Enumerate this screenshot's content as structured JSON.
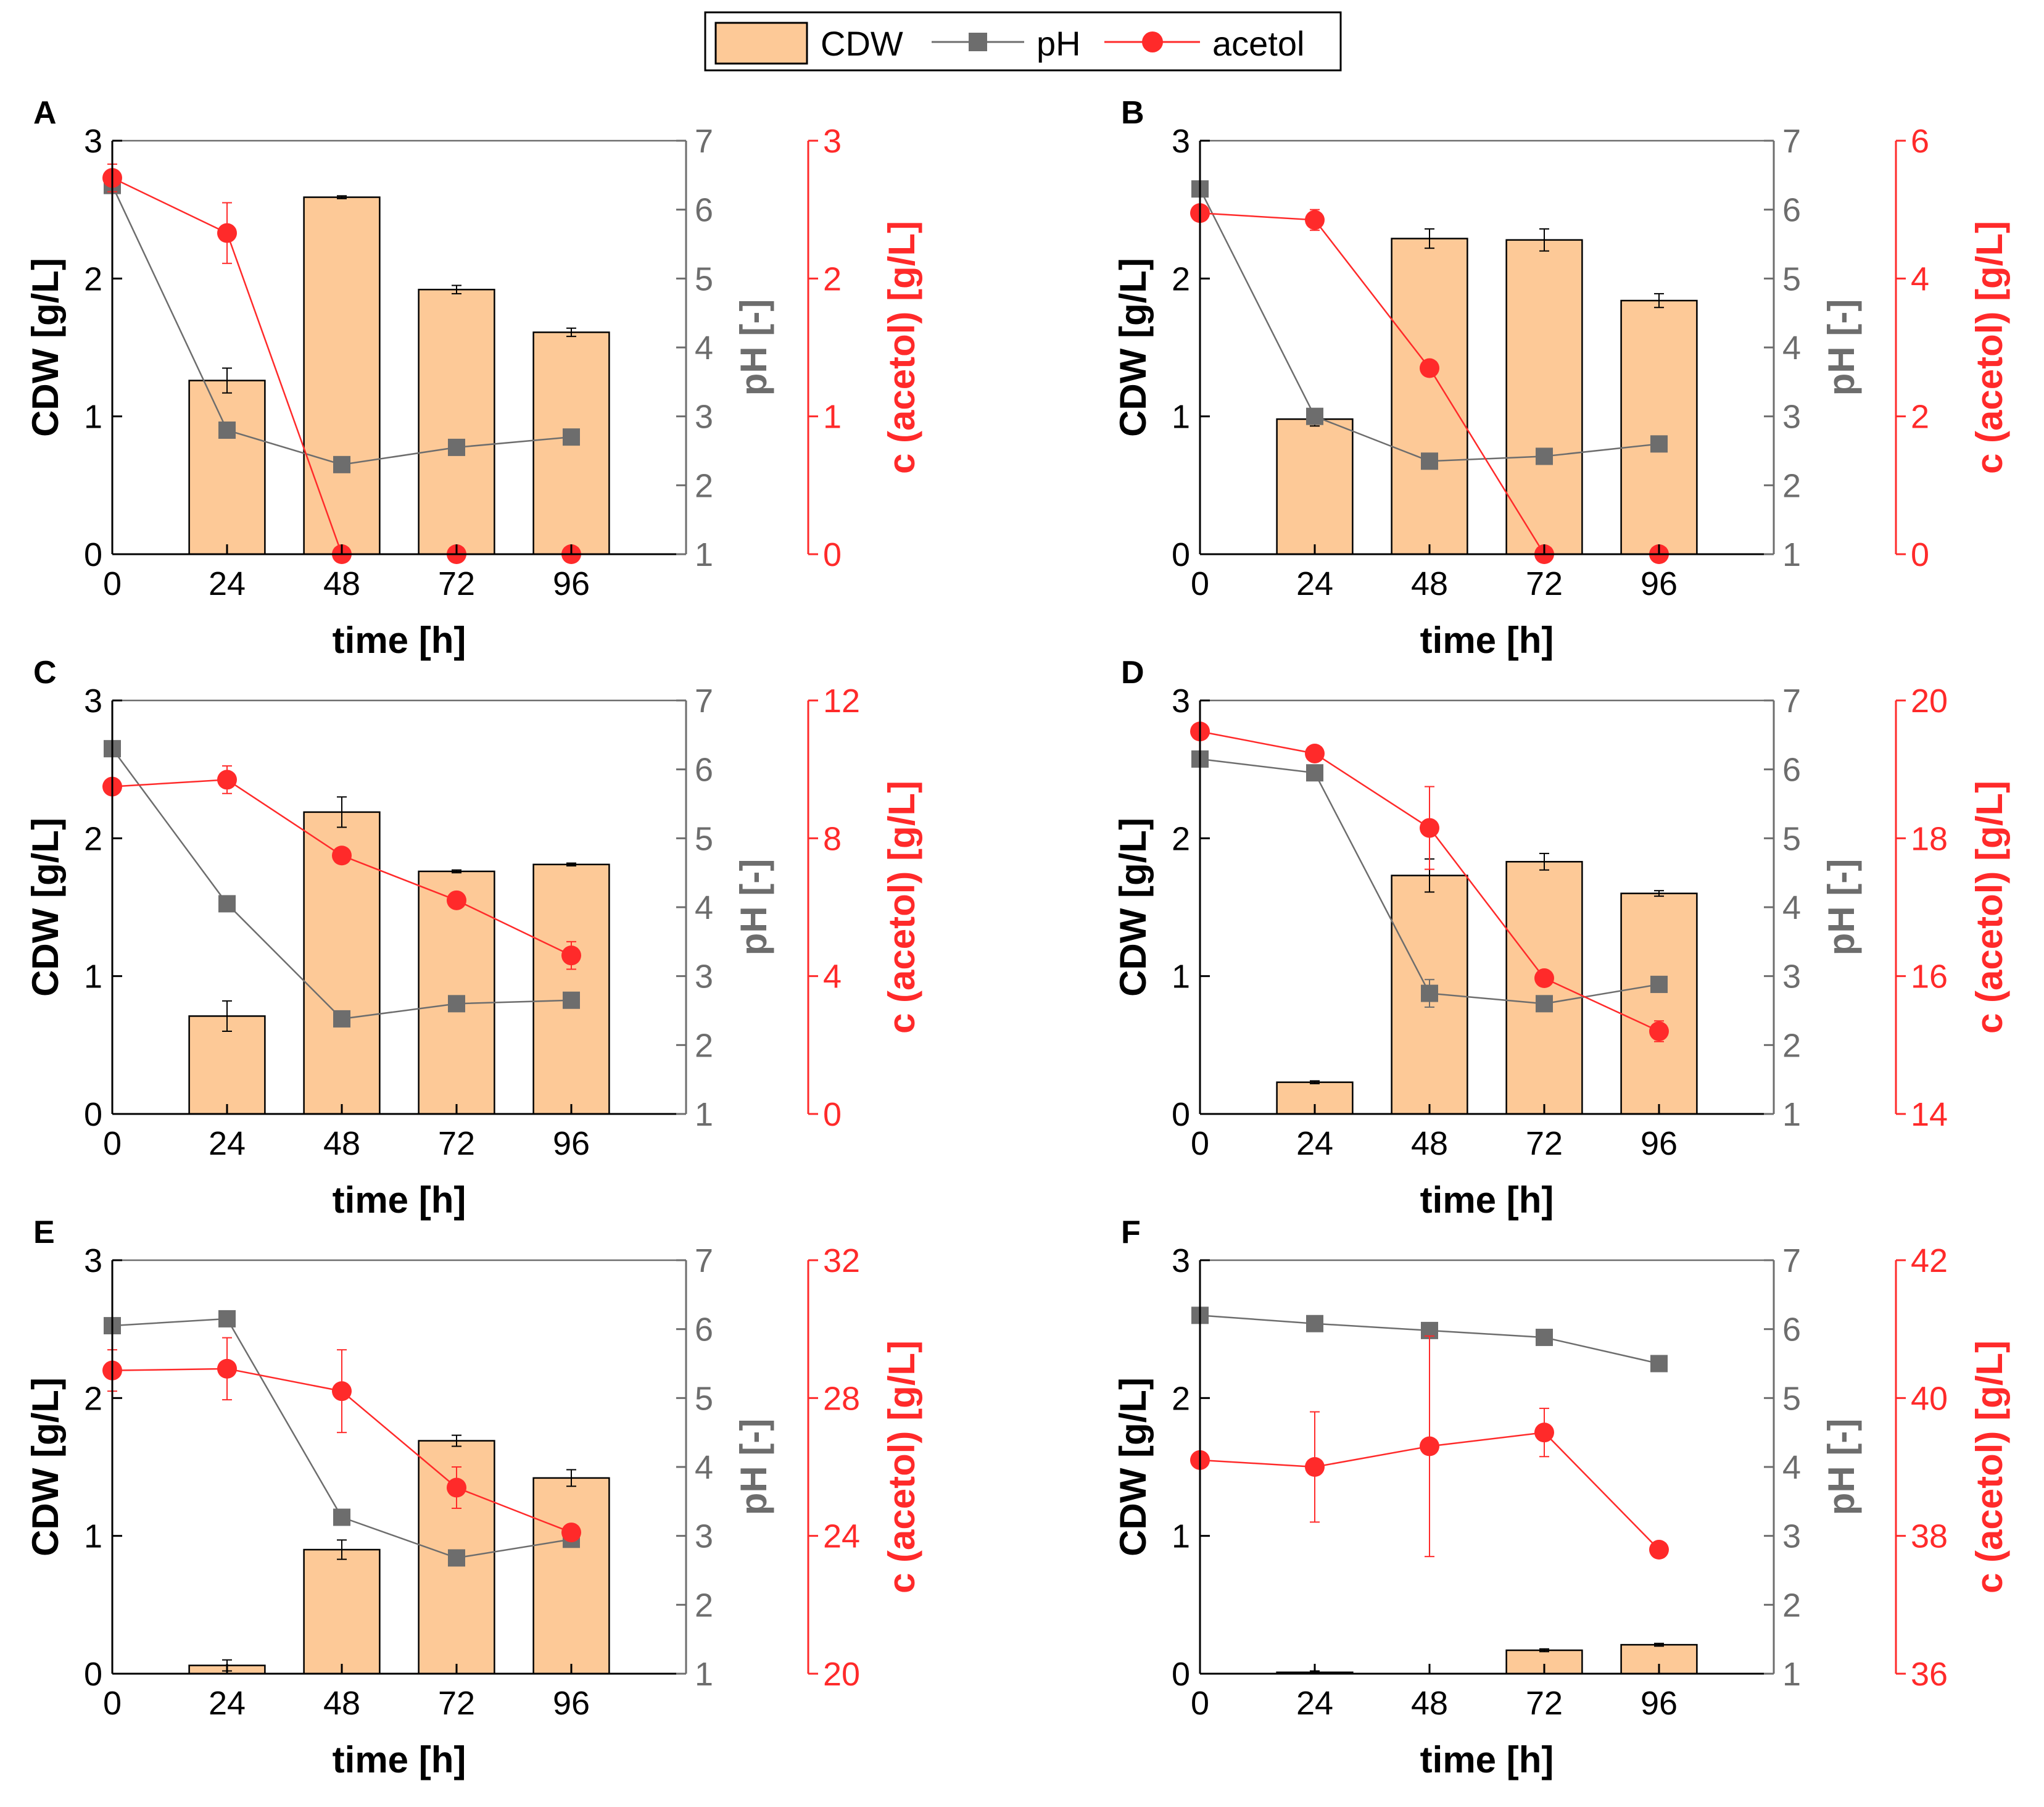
{
  "legend": {
    "cdw_label": "CDW",
    "ph_label": "pH",
    "acetol_label": "acetol"
  },
  "colors": {
    "bar_fill": "#fdc997",
    "bar_stroke": "#000000",
    "ph": "#6d6d6d",
    "acetol": "#ff2a2a",
    "axis_black": "#000000"
  },
  "axes_text": {
    "xlabel": "time [h]",
    "ylabel_left": "CDW [g/L]",
    "ylabel_ph": "pH [-]",
    "ylabel_acetol": "c (acetol) [g/L]"
  },
  "chart_data": [
    {
      "panel": "A",
      "type": "bar+line",
      "x_ticks": [
        0,
        24,
        48,
        72,
        96
      ],
      "xlim": [
        0,
        120
      ],
      "cdw": {
        "x": [
          24,
          48,
          72,
          96
        ],
        "values": [
          1.26,
          2.59,
          1.92,
          1.61
        ],
        "err": [
          0.09,
          0.01,
          0.03,
          0.03
        ]
      },
      "ph": {
        "x": [
          0,
          24,
          48,
          72,
          96
        ],
        "values": [
          6.35,
          2.8,
          2.3,
          2.55,
          2.7
        ],
        "err": [
          0,
          0,
          0,
          0,
          0
        ]
      },
      "acetol": {
        "x": [
          0,
          24,
          48,
          72,
          96
        ],
        "values": [
          2.73,
          2.33,
          0,
          0,
          0
        ],
        "err": [
          0.1,
          0.22,
          0,
          0,
          0
        ]
      },
      "ylim_cdw": [
        0,
        3
      ],
      "yticks_cdw": [
        0,
        1,
        2,
        3
      ],
      "ylim_ph": [
        1,
        7
      ],
      "yticks_ph": [
        1,
        2,
        3,
        4,
        5,
        6,
        7
      ],
      "ylim_acetol": [
        0,
        3
      ],
      "yticks_acetol": [
        0,
        1,
        2,
        3
      ]
    },
    {
      "panel": "B",
      "type": "bar+line",
      "x_ticks": [
        0,
        24,
        48,
        72,
        96
      ],
      "xlim": [
        0,
        120
      ],
      "cdw": {
        "x": [
          24,
          48,
          72,
          96
        ],
        "values": [
          0.98,
          2.29,
          2.28,
          1.84
        ],
        "err": [
          0.05,
          0.07,
          0.08,
          0.05
        ]
      },
      "ph": {
        "x": [
          0,
          24,
          48,
          72,
          96
        ],
        "values": [
          6.3,
          3.0,
          2.35,
          2.42,
          2.6
        ],
        "err": [
          0,
          0,
          0,
          0,
          0
        ]
      },
      "acetol": {
        "x": [
          0,
          24,
          48,
          72,
          96
        ],
        "values": [
          4.95,
          4.85,
          2.7,
          0,
          0
        ],
        "err": [
          0.1,
          0.15,
          0,
          0,
          0
        ]
      },
      "ylim_cdw": [
        0,
        3
      ],
      "yticks_cdw": [
        0,
        1,
        2,
        3
      ],
      "ylim_ph": [
        1,
        7
      ],
      "yticks_ph": [
        1,
        2,
        3,
        4,
        5,
        6,
        7
      ],
      "ylim_acetol": [
        0,
        6
      ],
      "yticks_acetol": [
        0,
        2,
        4,
        6
      ]
    },
    {
      "panel": "C",
      "type": "bar+line",
      "x_ticks": [
        0,
        24,
        48,
        72,
        96
      ],
      "xlim": [
        0,
        120
      ],
      "cdw": {
        "x": [
          24,
          48,
          72,
          96
        ],
        "values": [
          0.71,
          2.19,
          1.76,
          1.81
        ],
        "err": [
          0.11,
          0.11,
          0.01,
          0.01
        ]
      },
      "ph": {
        "x": [
          0,
          24,
          48,
          72,
          96
        ],
        "values": [
          6.3,
          4.05,
          2.38,
          2.6,
          2.65
        ],
        "err": [
          0,
          0,
          0,
          0,
          0
        ]
      },
      "acetol": {
        "x": [
          0,
          24,
          48,
          72,
          96
        ],
        "values": [
          9.5,
          9.7,
          7.5,
          6.2,
          4.6
        ],
        "err": [
          0,
          0.4,
          0,
          0,
          0.4
        ]
      },
      "ylim_cdw": [
        0,
        3
      ],
      "yticks_cdw": [
        0,
        1,
        2,
        3
      ],
      "ylim_ph": [
        1,
        7
      ],
      "yticks_ph": [
        1,
        2,
        3,
        4,
        5,
        6,
        7
      ],
      "ylim_acetol": [
        0,
        12
      ],
      "yticks_acetol": [
        0,
        4,
        8,
        12
      ]
    },
    {
      "panel": "D",
      "type": "bar+line",
      "x_ticks": [
        0,
        24,
        48,
        72,
        96
      ],
      "xlim": [
        0,
        120
      ],
      "cdw": {
        "x": [
          24,
          48,
          72,
          96
        ],
        "values": [
          0.23,
          1.73,
          1.83,
          1.6
        ],
        "err": [
          0.01,
          0.12,
          0.06,
          0.02
        ]
      },
      "ph": {
        "x": [
          0,
          24,
          48,
          72,
          96
        ],
        "values": [
          6.15,
          5.95,
          2.75,
          2.6,
          2.88
        ],
        "err": [
          0,
          0,
          0.2,
          0,
          0
        ]
      },
      "acetol": {
        "x": [
          0,
          24,
          48,
          72,
          96
        ],
        "values": [
          19.55,
          19.23,
          18.15,
          15.97,
          15.2
        ],
        "err": [
          0,
          0,
          0.6,
          0,
          0.15
        ]
      },
      "ylim_cdw": [
        0,
        3
      ],
      "yticks_cdw": [
        0,
        1,
        2,
        3
      ],
      "ylim_ph": [
        1,
        7
      ],
      "yticks_ph": [
        1,
        2,
        3,
        4,
        5,
        6,
        7
      ],
      "ylim_acetol": [
        14,
        20
      ],
      "yticks_acetol": [
        14,
        16,
        18,
        20
      ]
    },
    {
      "panel": "E",
      "type": "bar+line",
      "x_ticks": [
        0,
        24,
        48,
        72,
        96
      ],
      "xlim": [
        0,
        120
      ],
      "cdw": {
        "x": [
          24,
          48,
          72,
          96
        ],
        "values": [
          0.06,
          0.9,
          1.69,
          1.42
        ],
        "err": [
          0.04,
          0.07,
          0.04,
          0.06
        ]
      },
      "ph": {
        "x": [
          0,
          24,
          48,
          72,
          96
        ],
        "values": [
          6.05,
          6.15,
          3.27,
          2.68,
          2.95
        ],
        "err": [
          0,
          0,
          0,
          0,
          0
        ]
      },
      "acetol": {
        "x": [
          0,
          24,
          48,
          72,
          96
        ],
        "values": [
          28.8,
          28.85,
          28.2,
          25.4,
          24.1
        ],
        "err": [
          0.6,
          0.9,
          1.2,
          0.6,
          0
        ]
      },
      "ylim_cdw": [
        0,
        3
      ],
      "yticks_cdw": [
        0,
        1,
        2,
        3
      ],
      "ylim_ph": [
        1,
        7
      ],
      "yticks_ph": [
        1,
        2,
        3,
        4,
        5,
        6,
        7
      ],
      "ylim_acetol": [
        20,
        32
      ],
      "yticks_acetol": [
        20,
        24,
        28,
        32
      ]
    },
    {
      "panel": "F",
      "type": "bar+line",
      "x_ticks": [
        0,
        24,
        48,
        72,
        96
      ],
      "xlim": [
        0,
        120
      ],
      "cdw": {
        "x": [
          24,
          48,
          72,
          96
        ],
        "values": [
          0.01,
          0,
          0.17,
          0.21
        ],
        "err": [
          0.01,
          0,
          0.01,
          0.01
        ]
      },
      "ph": {
        "x": [
          0,
          24,
          48,
          72,
          96
        ],
        "values": [
          6.2,
          6.08,
          5.98,
          5.88,
          5.5
        ],
        "err": [
          0,
          0,
          0,
          0,
          0
        ]
      },
      "acetol": {
        "x": [
          0,
          24,
          48,
          72,
          96
        ],
        "values": [
          39.1,
          39.0,
          39.3,
          39.5,
          37.8
        ],
        "err": [
          0,
          0.8,
          1.6,
          0.35,
          0
        ]
      },
      "ylim_cdw": [
        0,
        3
      ],
      "yticks_cdw": [
        0,
        1,
        2,
        3
      ],
      "ylim_ph": [
        1,
        7
      ],
      "yticks_ph": [
        1,
        2,
        3,
        4,
        5,
        6,
        7
      ],
      "ylim_acetol": [
        36,
        42
      ],
      "yticks_acetol": [
        36,
        38,
        40,
        42
      ]
    }
  ]
}
